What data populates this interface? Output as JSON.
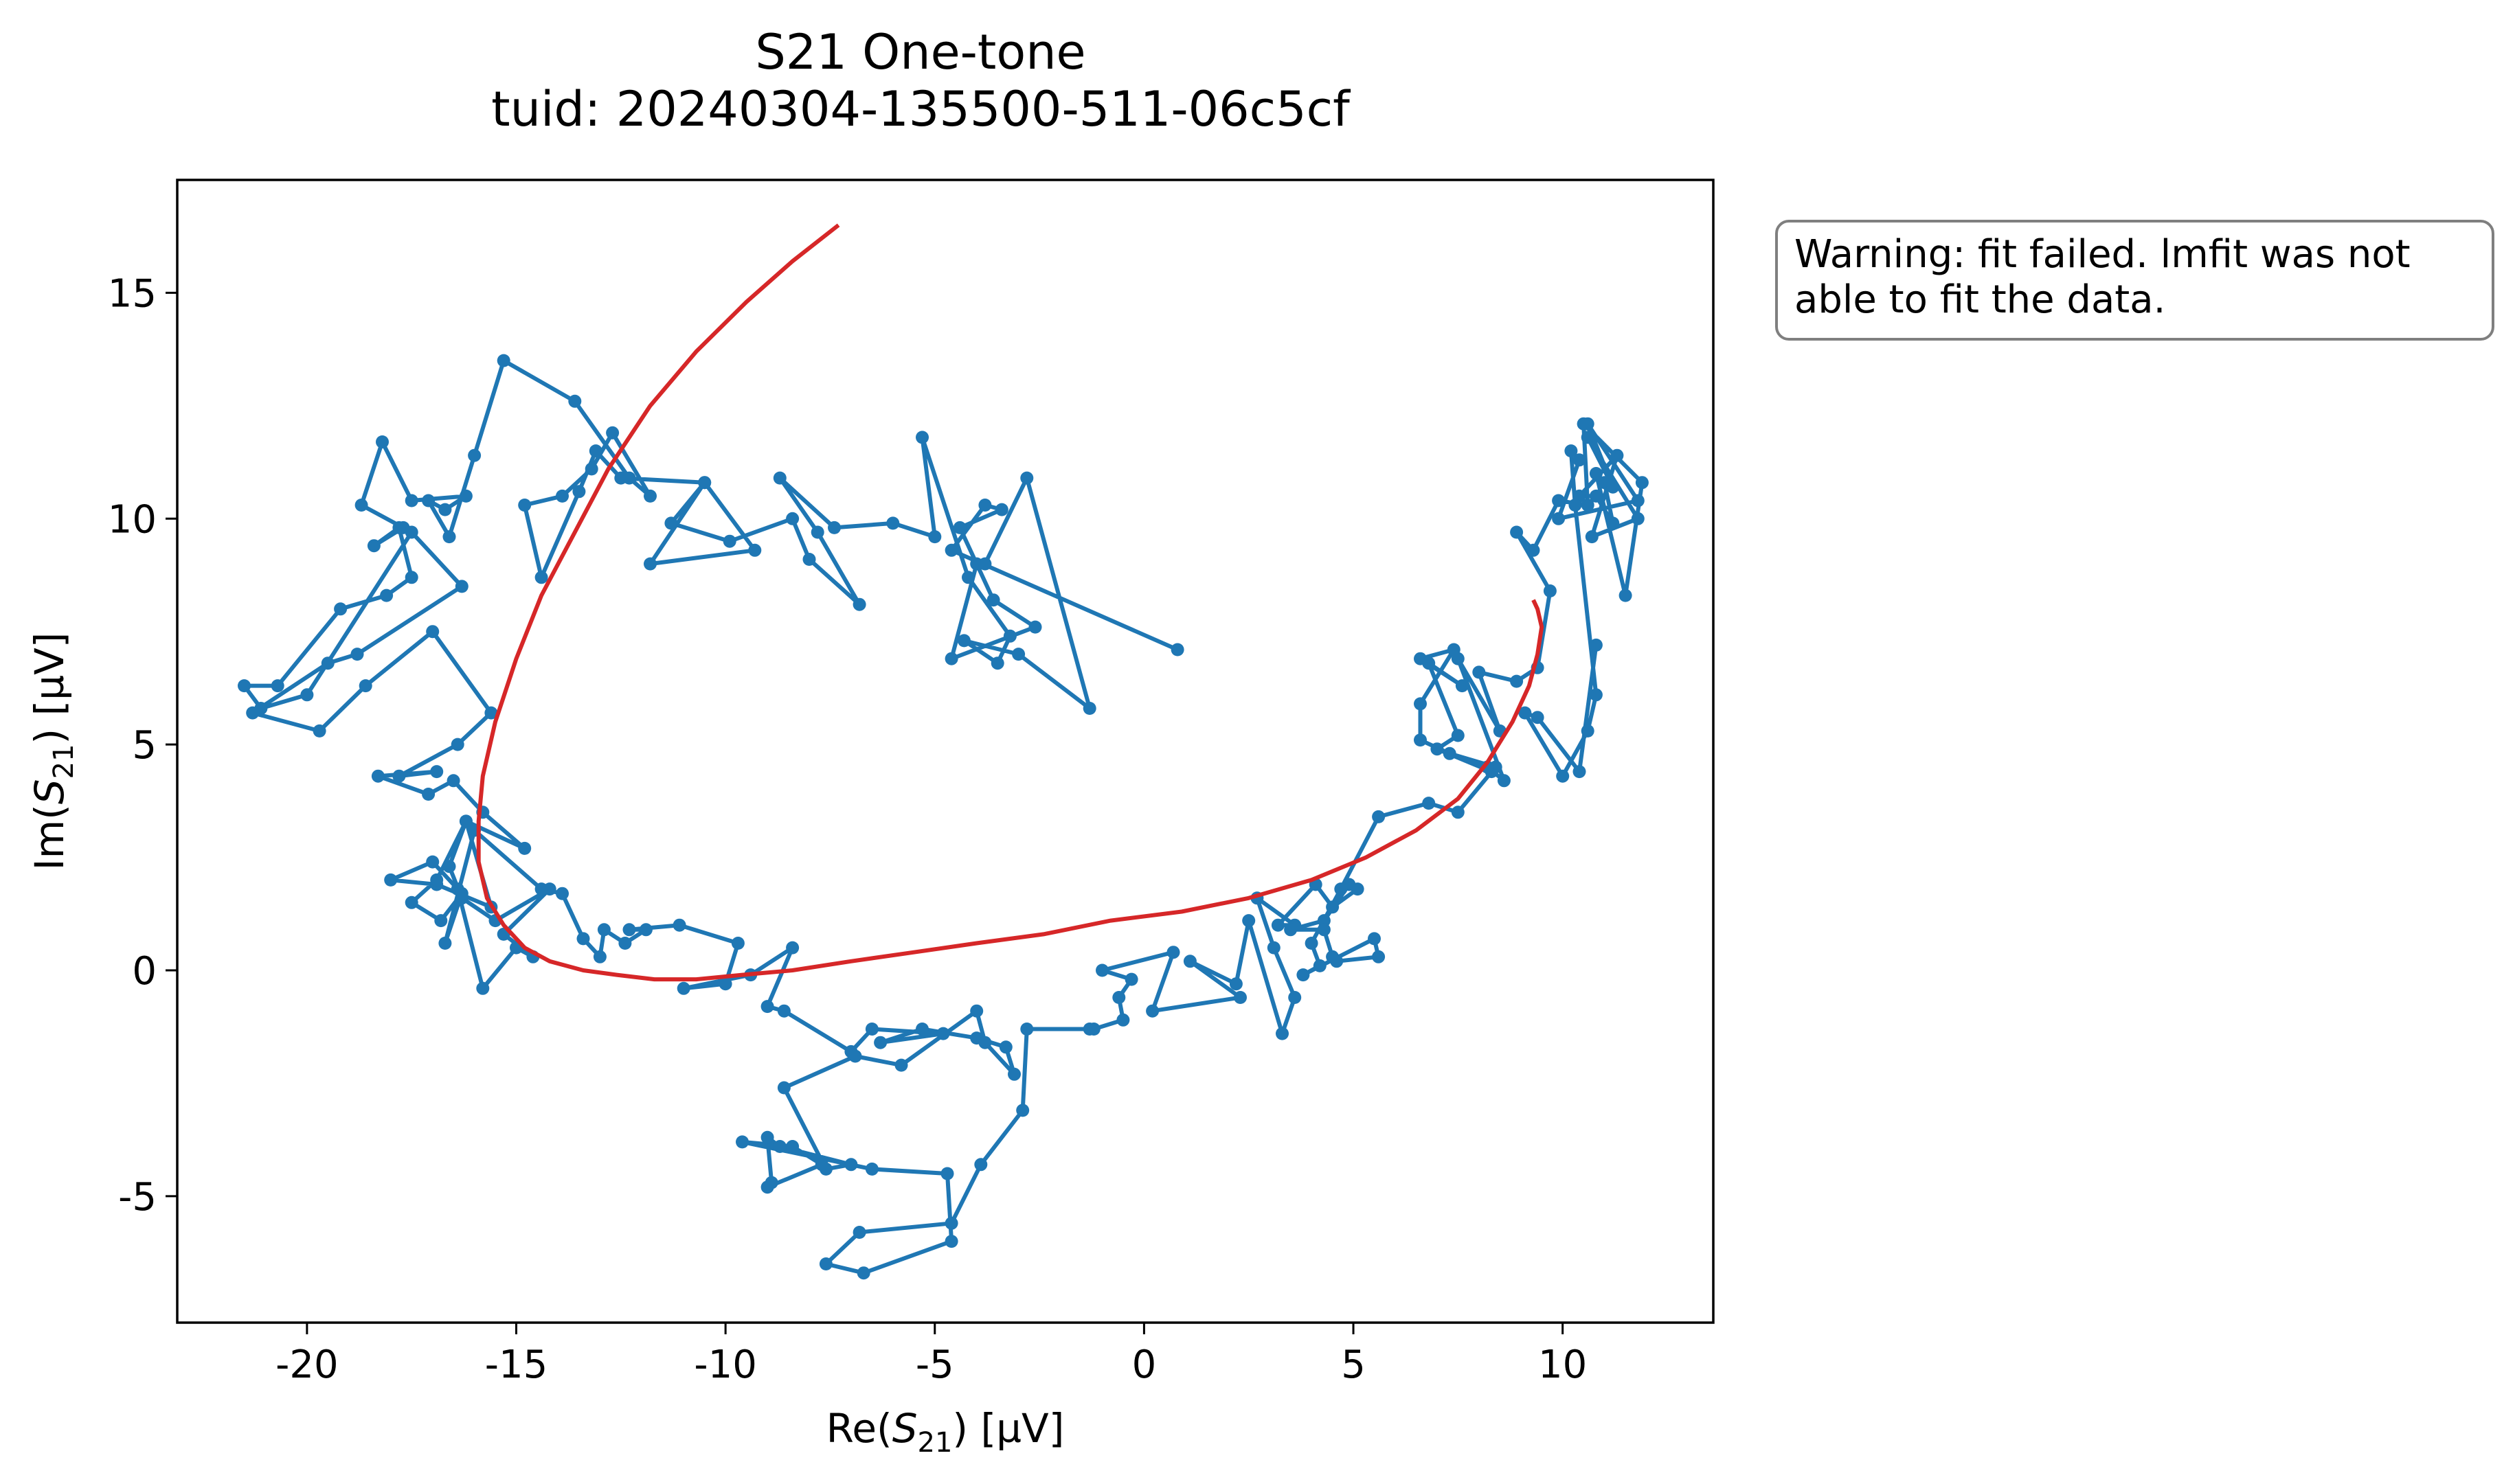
{
  "chart_data": {
    "type": "line",
    "title": "S21 One-tone",
    "subtitle": "tuid: 20240304-135500-511-06c5cf",
    "xlabel": "Re(S21) [µV]",
    "ylabel": "Im(S21) [µV]",
    "xlim": [
      -23.1,
      13.6
    ],
    "ylim": [
      -7.8,
      17.5
    ],
    "xticks": [
      -20,
      -15,
      -10,
      -5,
      0,
      5,
      10
    ],
    "yticks": [
      -5,
      0,
      5,
      10,
      15
    ],
    "xtick_labels": [
      "-20",
      "-15",
      "-10",
      "-5",
      "0",
      "5",
      "10"
    ],
    "ytick_labels": [
      "-5",
      "0",
      "5",
      "10",
      "15"
    ],
    "grid": false,
    "annotation": "Warning: fit failed. lmfit was not\nable to fit the data.",
    "colors": {
      "data": "#1f77b4",
      "fit": "#d62728",
      "annotation_border": "#7f7f7f"
    },
    "series": [
      {
        "kind": "line+markers",
        "x": [
          0.8,
          -4.6,
          -3.8,
          -3.4,
          -4.4,
          -3.6,
          -2.6,
          -4.6,
          -4.0,
          -3.8,
          -2.8,
          -1.3,
          -3.0,
          -4.3,
          -3.5,
          -3.2,
          -4.2,
          -5.3,
          -5.0,
          -6.0,
          -7.4,
          -8.7,
          -7.8,
          -6.8,
          -8.0,
          -8.4,
          -9.9,
          -11.3,
          -10.5,
          -11.8,
          -9.3,
          -10.5,
          -12.5,
          -13.1,
          -13.5,
          -14.4,
          -14.8,
          -13.9,
          -13.2,
          -12.7,
          -11.8,
          -12.3,
          -13.6,
          -15.3,
          -16.0,
          -16.6,
          -17.1,
          -16.7,
          -16.2,
          -17.5,
          -18.2,
          -18.7,
          -17.7,
          -18.4,
          -17.8,
          -17.5,
          -18.1,
          -19.2,
          -20.7,
          -21.5,
          -21.1,
          -20.0,
          -17.5,
          -16.3,
          -18.8,
          -19.5,
          -21.3,
          -19.7,
          -18.6,
          -17.0,
          -15.6,
          -16.4,
          -17.8,
          -16.9,
          -18.3,
          -17.1,
          -16.5,
          -15.8,
          -14.8,
          -16.2,
          -16.6,
          -16.3,
          -15.5,
          -14.2,
          -15.3,
          -14.6,
          -15.0,
          -15.8,
          -16.4,
          -17.0,
          -18.0,
          -16.9,
          -15.6,
          -16.2,
          -16.9,
          -17.5,
          -16.8,
          -16.3,
          -16.7,
          -16.0,
          -14.4,
          -13.9,
          -13.4,
          -13.0,
          -12.9,
          -12.4,
          -11.9,
          -12.3,
          -11.1,
          -9.7,
          -10.0,
          -11.0,
          -9.4,
          -8.4,
          -9.0,
          -8.6,
          -7.0,
          -6.5,
          -4.8,
          -6.3,
          -5.3,
          -4.0,
          -3.3,
          -3.1,
          -3.8,
          -4.0,
          -5.8,
          -6.9,
          -8.6,
          -7.6,
          -7.0,
          -8.7,
          -9.0,
          -8.9,
          -9.0,
          -7.7,
          -8.4,
          -9.6,
          -6.5,
          -4.7,
          -4.6,
          -6.7,
          -7.6,
          -6.8,
          -4.6,
          -3.9,
          -2.9,
          -2.8,
          -1.3,
          -1.2,
          -0.5,
          -0.6,
          -0.3,
          -1.0,
          0.7,
          0.2,
          2.3,
          1.1,
          2.2,
          2.5,
          3.3,
          3.6,
          3.1,
          2.7,
          3.6,
          3.2,
          4.1,
          4.5,
          5.1,
          4.9,
          4.3,
          3.5,
          4.3,
          4.5,
          4.6,
          5.6,
          5.5,
          3.8,
          4.2,
          4.0,
          4.7,
          5.6,
          6.8,
          7.5,
          8.4,
          7.3,
          6.6,
          6.6,
          7.4,
          6.6,
          7.6,
          6.8,
          7.5,
          7.0,
          8.3,
          8.2,
          8.6,
          7.5,
          8.5,
          8.0,
          8.9,
          9.4,
          9.7,
          8.9,
          9.3,
          9.9,
          10.6,
          10.5,
          11.9,
          11.5,
          10.8,
          11.0,
          11.2,
          10.8,
          10.4,
          11.3,
          10.7,
          11.8,
          10.6,
          11.2,
          10.6,
          11.8,
          9.9,
          10.4,
          10.2,
          10.3,
          10.8,
          10.6,
          10.0,
          9.1,
          9.4,
          10.4,
          10.8
        ],
        "y": [
          7.1,
          9.3,
          10.3,
          10.2,
          9.8,
          8.2,
          7.6,
          6.9,
          9.0,
          9.0,
          10.9,
          5.8,
          7.0,
          7.3,
          6.8,
          7.4,
          8.7,
          11.8,
          9.6,
          9.9,
          9.8,
          10.9,
          9.7,
          8.1,
          9.1,
          10.0,
          9.5,
          9.9,
          10.8,
          9.0,
          9.3,
          10.8,
          10.9,
          11.5,
          10.6,
          8.7,
          10.3,
          10.5,
          11.1,
          11.9,
          10.5,
          10.9,
          12.6,
          13.5,
          11.4,
          9.6,
          10.4,
          10.2,
          10.5,
          10.4,
          11.7,
          10.3,
          9.8,
          9.4,
          9.8,
          8.7,
          8.3,
          8.0,
          6.3,
          6.3,
          5.8,
          6.1,
          9.7,
          8.5,
          7.0,
          6.8,
          5.7,
          5.3,
          6.3,
          7.5,
          5.7,
          5.0,
          4.3,
          4.4,
          4.3,
          3.9,
          4.2,
          3.5,
          2.7,
          3.3,
          2.3,
          1.6,
          1.1,
          1.8,
          0.8,
          0.3,
          0.5,
          -0.4,
          1.8,
          2.4,
          2.0,
          1.9,
          1.4,
          3.3,
          2.0,
          1.5,
          1.1,
          1.7,
          0.6,
          3.1,
          1.8,
          1.7,
          0.7,
          0.3,
          0.9,
          0.6,
          0.9,
          0.9,
          1.0,
          0.6,
          -0.3,
          -0.4,
          -0.1,
          0.5,
          -0.8,
          -0.9,
          -1.8,
          -1.3,
          -1.4,
          -1.6,
          -1.3,
          -1.5,
          -1.7,
          -2.3,
          -1.6,
          -0.9,
          -2.1,
          -1.9,
          -2.6,
          -4.4,
          -4.3,
          -3.9,
          -3.7,
          -4.7,
          -4.8,
          -4.3,
          -3.9,
          -3.8,
          -4.4,
          -4.5,
          -6.0,
          -6.7,
          -6.5,
          -5.8,
          -5.6,
          -4.3,
          -3.1,
          -1.3,
          -1.3,
          -1.3,
          -1.1,
          -0.6,
          -0.2,
          0.0,
          0.4,
          -0.9,
          -0.6,
          0.2,
          -0.3,
          1.1,
          -1.4,
          -0.6,
          0.5,
          1.6,
          1.0,
          1.0,
          1.9,
          1.4,
          1.8,
          1.9,
          1.1,
          0.9,
          0.9,
          0.3,
          0.2,
          0.3,
          0.7,
          -0.1,
          0.1,
          0.6,
          1.8,
          3.4,
          3.7,
          3.5,
          4.5,
          4.8,
          5.1,
          5.9,
          7.1,
          6.9,
          6.3,
          6.8,
          5.2,
          4.9,
          4.4,
          4.5,
          4.2,
          6.9,
          5.3,
          6.6,
          6.4,
          6.7,
          8.4,
          9.7,
          9.3,
          10.4,
          10.3,
          12.1,
          10.8,
          8.3,
          11.0,
          10.8,
          9.9,
          10.5,
          10.5,
          11.4,
          9.6,
          10.0,
          11.8,
          10.7,
          12.1,
          10.4,
          10.0,
          11.3,
          11.5,
          10.3,
          6.1,
          5.3,
          4.3,
          5.7,
          5.6,
          4.4,
          7.2
        ],
        "color": "#1f77b4"
      },
      {
        "kind": "line",
        "x": [
          -7.3,
          -8.4,
          -9.5,
          -10.7,
          -11.8,
          -12.8,
          -13.6,
          -14.4,
          -15.0,
          -15.5,
          -15.8,
          -15.9,
          -15.9,
          -15.7,
          -15.3,
          -14.8,
          -14.2,
          -13.4,
          -12.6,
          -11.7,
          -10.7,
          -9.6,
          -8.4,
          -7.0,
          -5.5,
          -4.0,
          -2.4,
          -0.8,
          0.9,
          2.5,
          4.0,
          5.3,
          6.5,
          7.5,
          8.2,
          8.8,
          9.2,
          9.4,
          9.5,
          9.4,
          9.3
        ],
        "y": [
          16.5,
          15.7,
          14.8,
          13.7,
          12.5,
          11.1,
          9.7,
          8.3,
          6.9,
          5.5,
          4.3,
          3.3,
          2.4,
          1.6,
          1.0,
          0.5,
          0.2,
          0.0,
          -0.1,
          -0.2,
          -0.2,
          -0.1,
          0.0,
          0.2,
          0.4,
          0.6,
          0.8,
          1.1,
          1.3,
          1.6,
          2.0,
          2.5,
          3.1,
          3.8,
          4.6,
          5.5,
          6.3,
          7.0,
          7.6,
          8.0,
          8.2
        ],
        "color": "#d62728"
      }
    ]
  }
}
